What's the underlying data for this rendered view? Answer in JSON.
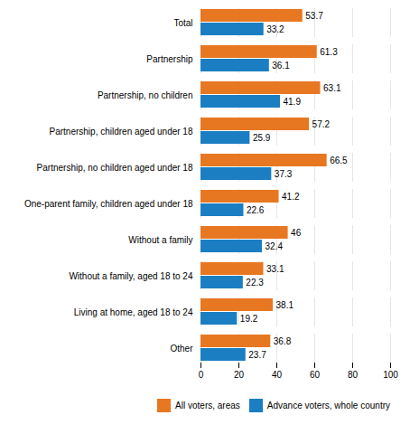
{
  "chart_data": {
    "type": "bar",
    "orientation": "horizontal",
    "categories": [
      "Total",
      "Partnership",
      "Partnership, no children",
      "Partnership, children aged under 18",
      "Partnership, no children aged under 18",
      "One-parent family, children aged under 18",
      "Without a family",
      "Without a family, aged 18 to 24",
      "Living at home, aged 18 to 24",
      "Other"
    ],
    "series": [
      {
        "name": "All voters, areas",
        "color": "#E87722",
        "values": [
          53.7,
          61.3,
          63.1,
          57.2,
          66.5,
          41.2,
          46.0,
          33.1,
          38.1,
          36.8
        ]
      },
      {
        "name": "Advance voters, whole country",
        "color": "#1B7EC2",
        "values": [
          33.2,
          36.1,
          41.9,
          25.9,
          37.3,
          22.6,
          32.4,
          22.3,
          19.2,
          23.7
        ]
      }
    ],
    "xlim": [
      0,
      100
    ],
    "xticks": [
      0,
      20,
      40,
      60,
      80,
      100
    ],
    "grid": true,
    "data_labels": true,
    "legend": "lower right"
  }
}
